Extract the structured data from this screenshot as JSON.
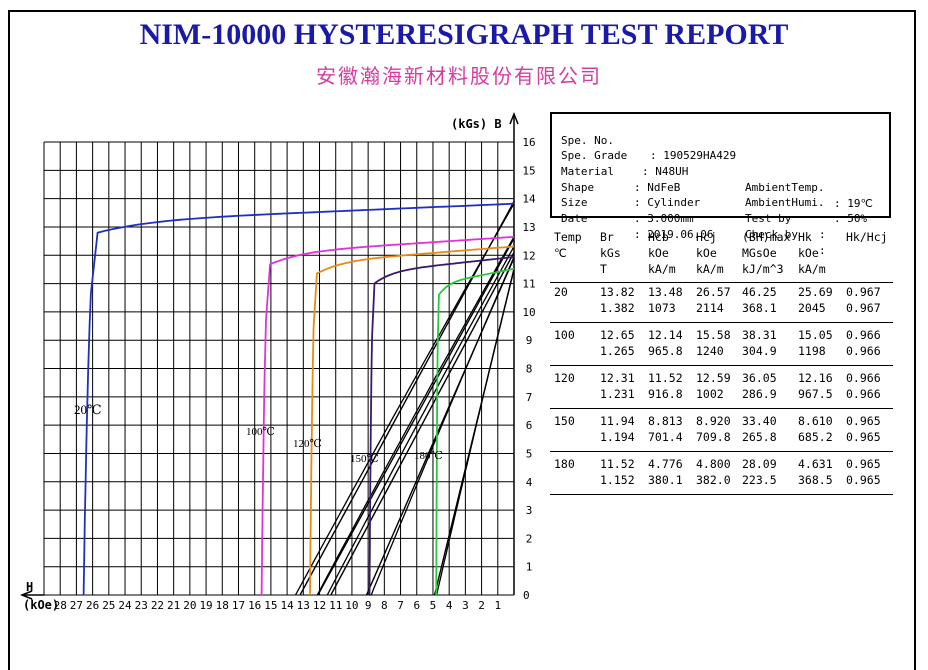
{
  "title": "NIM-10000 HYSTERESIGRAPH TEST REPORT",
  "subtitle": "安徽瀚海新材料股份有限公司",
  "info": {
    "spe_no_label": "Spe. No.",
    "spe_no": ": 190529HA429",
    "grade_label": "Spe. Grade",
    "grade": ": N48UH",
    "material_label": "Material",
    "material": ": NdFeB",
    "shape_label": "Shape",
    "shape": ": Cylinder",
    "size_label": "Size",
    "size": ": 3.000mm",
    "date_label": "Date",
    "date": ": 2019.06.06",
    "temp_label": "AmbientTemp.",
    "temp": ": 19℃",
    "humi_label": "AmbientHumi.",
    "humi": ": 50%",
    "testby_label": "Test by",
    "testby": ":",
    "checkby_label": "Check by",
    "checkby": ":"
  },
  "table": {
    "headers": [
      [
        "Temp",
        "℃",
        ""
      ],
      [
        "Br",
        "kGs",
        "T"
      ],
      [
        "Hcb",
        "kOe",
        "kA/m"
      ],
      [
        "Hcj",
        "kOe",
        "kA/m"
      ],
      [
        "(BH)max",
        "MGsOe",
        "kJ/m^3"
      ],
      [
        "Hk",
        "kOe",
        "kA/m"
      ],
      [
        "Hk/Hcj",
        "",
        ""
      ]
    ],
    "rows": [
      {
        "temp": "20",
        "br": [
          "13.82",
          "1.382"
        ],
        "hcb": [
          "13.48",
          "1073"
        ],
        "hcj": [
          "26.57",
          "2114"
        ],
        "bh": [
          "46.25",
          "368.1"
        ],
        "hk": [
          "25.69",
          "2045"
        ],
        "ratio": [
          "0.967",
          "0.967"
        ]
      },
      {
        "temp": "100",
        "br": [
          "12.65",
          "1.265"
        ],
        "hcb": [
          "12.14",
          "965.8"
        ],
        "hcj": [
          "15.58",
          "1240"
        ],
        "bh": [
          "38.31",
          "304.9"
        ],
        "hk": [
          "15.05",
          "1198"
        ],
        "ratio": [
          "0.966",
          "0.966"
        ]
      },
      {
        "temp": "120",
        "br": [
          "12.31",
          "1.231"
        ],
        "hcb": [
          "11.52",
          "916.8"
        ],
        "hcj": [
          "12.59",
          "1002"
        ],
        "bh": [
          "36.05",
          "286.9"
        ],
        "hk": [
          "12.16",
          "967.5"
        ],
        "ratio": [
          "0.966",
          "0.966"
        ]
      },
      {
        "temp": "150",
        "br": [
          "11.94",
          "1.194"
        ],
        "hcb": [
          "8.813",
          "701.4"
        ],
        "hcj": [
          "8.920",
          "709.8"
        ],
        "bh": [
          "33.40",
          "265.8"
        ],
        "hk": [
          "8.610",
          "685.2"
        ],
        "ratio": [
          "0.965",
          "0.965"
        ]
      },
      {
        "temp": "180",
        "br": [
          "11.52",
          "1.152"
        ],
        "hcb": [
          "4.776",
          "380.1"
        ],
        "hcj": [
          "4.800",
          "382.0"
        ],
        "bh": [
          "28.09",
          "223.5"
        ],
        "hk": [
          "4.631",
          "368.5"
        ],
        "ratio": [
          "0.965",
          "0.965"
        ]
      }
    ]
  },
  "chart_data": {
    "type": "line",
    "xlabel_top": "H",
    "xlabel_unit": "(kOe)",
    "ylabel": "(kGs) B",
    "xlim": [
      0,
      29
    ],
    "ylim": [
      0,
      16
    ],
    "x_ticks": [
      "28",
      "27",
      "26",
      "25",
      "24",
      "23",
      "22",
      "21",
      "20",
      "19",
      "18",
      "17",
      "16",
      "15",
      "14",
      "13",
      "12",
      "11",
      "10",
      "9",
      "8",
      "7",
      "6",
      "5",
      "4",
      "3",
      "2",
      "1"
    ],
    "y_ticks": [
      "1",
      "2",
      "3",
      "4",
      "5",
      "6",
      "7",
      "8",
      "9",
      "10",
      "11",
      "12",
      "13",
      "14",
      "15",
      "16"
    ],
    "grid": true,
    "colors": {
      "c20": "#1f2fbf",
      "c100": "#e032d8",
      "c120": "#e88a14",
      "c150": "#3a1870",
      "c180": "#22cc3a",
      "load": "#000000"
    },
    "series": [
      {
        "name": "20℃",
        "label": "20℃",
        "color": "#1f2fbf",
        "br": 13.82,
        "hcj": 26.57,
        "hk": 25.69
      },
      {
        "name": "100℃",
        "label": "100℃",
        "color": "#e032d8",
        "br": 12.65,
        "hcj": 15.58,
        "hk": 15.05
      },
      {
        "name": "120℃",
        "label": "120℃",
        "color": "#e88a14",
        "br": 12.31,
        "hcj": 12.59,
        "hk": 12.16
      },
      {
        "name": "150℃",
        "label": "150℃",
        "color": "#3a1870",
        "br": 11.94,
        "hcj": 8.92,
        "hk": 8.61
      },
      {
        "name": "180℃",
        "label": "180℃",
        "color": "#22cc3a",
        "br": 11.52,
        "hcj": 4.8,
        "hk": 4.631
      }
    ],
    "normal_curves": [
      {
        "br": 13.82,
        "hcb": 13.48
      },
      {
        "br": 12.65,
        "hcb": 12.14
      },
      {
        "br": 12.31,
        "hcb": 11.52
      },
      {
        "br": 11.94,
        "hcb": 8.813
      },
      {
        "br": 11.52,
        "hcb": 4.776
      }
    ]
  }
}
